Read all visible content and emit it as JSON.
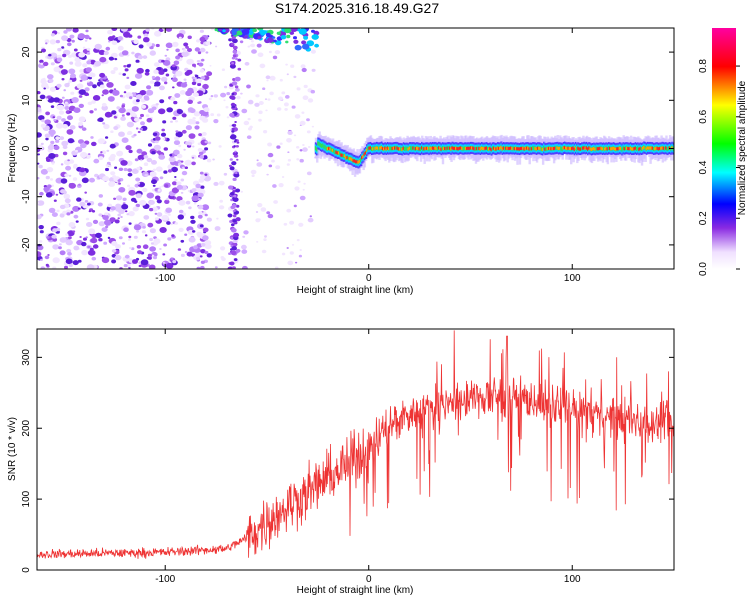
{
  "chart_data": [
    {
      "type": "heatmap",
      "title": "S174.2025.316.18.49.G27",
      "xlabel": "Height of straight line (km)",
      "ylabel": "Frequency (Hz)",
      "xlim": [
        -163,
        150
      ],
      "ylim": [
        -25,
        25
      ],
      "xticks": [
        -100,
        0,
        100
      ],
      "xtick_labels": [
        "-100",
        "0",
        "100"
      ],
      "yticks": [
        -20,
        -10,
        0,
        10,
        20
      ],
      "ytick_labels": [
        "-20",
        "-10",
        "0",
        "10",
        "20"
      ],
      "colorbar": {
        "label": "Normalized spectral amplitude",
        "range": [
          0.0,
          0.95
        ],
        "ticks": [
          0.0,
          0.2,
          0.4,
          0.6,
          0.8
        ],
        "tick_labels": [
          "0.0",
          "0.2",
          "0.4",
          "0.6",
          "0.8"
        ]
      },
      "ridge": {
        "x": [
          -25,
          -20,
          -15,
          -10,
          -5,
          0,
          10,
          30,
          60,
          90,
          120,
          150
        ],
        "freq_hz": [
          1,
          0,
          -1,
          -2,
          -3,
          0,
          0,
          0,
          0,
          0,
          0,
          0
        ]
      }
    },
    {
      "type": "line",
      "xlabel": "Height of straight line (km)",
      "ylabel": "SNR (10 * v/v)",
      "xlim": [
        -163,
        150
      ],
      "ylim": [
        0,
        340
      ],
      "xticks": [
        -100,
        0,
        100
      ],
      "xtick_labels": [
        "-100",
        "0",
        "100"
      ],
      "yticks": [
        0,
        100,
        200,
        300
      ],
      "ytick_labels": [
        "0",
        "100",
        "200",
        "300"
      ],
      "color": "#ee3333",
      "trend": {
        "x": [
          -163,
          -100,
          -70,
          -60,
          -40,
          -20,
          0,
          10,
          20,
          40,
          60,
          80,
          100,
          120,
          150
        ],
        "y": [
          22,
          25,
          30,
          45,
          90,
          130,
          170,
          205,
          220,
          235,
          245,
          240,
          225,
          215,
          205
        ]
      },
      "peak": {
        "x": 68,
        "y": 330
      }
    }
  ]
}
